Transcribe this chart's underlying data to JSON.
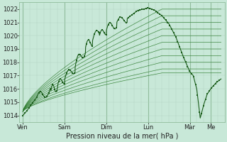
{
  "bg_color": "#c8e8d8",
  "plot_bg_color": "#c8e8d8",
  "grid_color_minor": "#b0d4c0",
  "grid_color_major": "#90bc9c",
  "line_color_main": "#1a5c1a",
  "line_color_ensemble": "#2a7a2a",
  "ylim": [
    1013.5,
    1022.5
  ],
  "yticks": [
    1014,
    1015,
    1016,
    1017,
    1018,
    1019,
    1020,
    1021,
    1022
  ],
  "xlabel": "Pression niveau de la mer( hPa )",
  "xlabel_fontsize": 7,
  "tick_fontsize": 6,
  "x_day_labels": [
    "Ven",
    "Sam",
    "Dim",
    "Lun",
    "Mar",
    "Me"
  ],
  "x_day_positions": [
    0,
    24,
    48,
    72,
    96,
    108
  ],
  "xlim": [
    -2,
    116
  ]
}
